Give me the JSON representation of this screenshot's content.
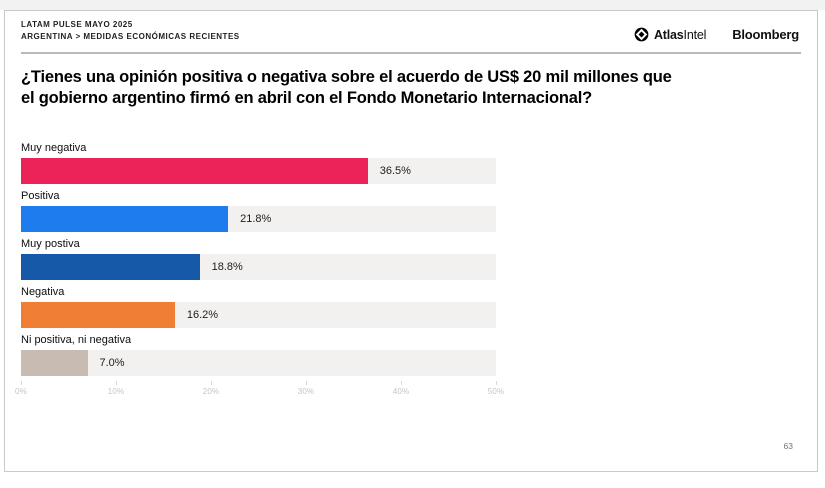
{
  "header": {
    "kicker": "LATAM PULSE MAYO 2025",
    "breadcrumb": "ARGENTINA > MEDIDAS ECONÓMICAS RECIENTES",
    "logos": {
      "atlasintel_bold": "Atlas",
      "atlasintel_regular": "Intel",
      "bloomberg": "Bloomberg"
    }
  },
  "question": {
    "line1": "¿Tienes una opinión positiva o negativa sobre el acuerdo de US$ 20 mil millones que",
    "line2": "el gobierno argentino firmó en abril con el Fondo Monetario Internacional?"
  },
  "chart_data": {
    "type": "bar",
    "orientation": "horizontal",
    "title": "¿Tienes una opinión positiva o negativa sobre el acuerdo de US$ 20 mil millones que el gobierno argentino firmó en abril con el Fondo Monetario Internacional?",
    "categories": [
      "Muy negativa",
      "Positiva",
      "Muy postiva",
      "Negativa",
      "Ni positiva, ni negativa"
    ],
    "values": [
      36.5,
      21.8,
      18.8,
      16.2,
      7.0
    ],
    "value_labels": [
      "36.5%",
      "21.8%",
      "18.8%",
      "16.2%",
      "7.0%"
    ],
    "bar_colors": [
      "#EB2358",
      "#1F7CEF",
      "#1659A9",
      "#F07E35",
      "#C7BBB2"
    ],
    "track_color": "#F2F1F0",
    "xlim": [
      0,
      50
    ],
    "x_ticks": [
      "0%",
      "10%",
      "20%",
      "30%",
      "40%",
      "50%"
    ],
    "grid": false,
    "legend": false
  },
  "page": {
    "number": "63"
  }
}
